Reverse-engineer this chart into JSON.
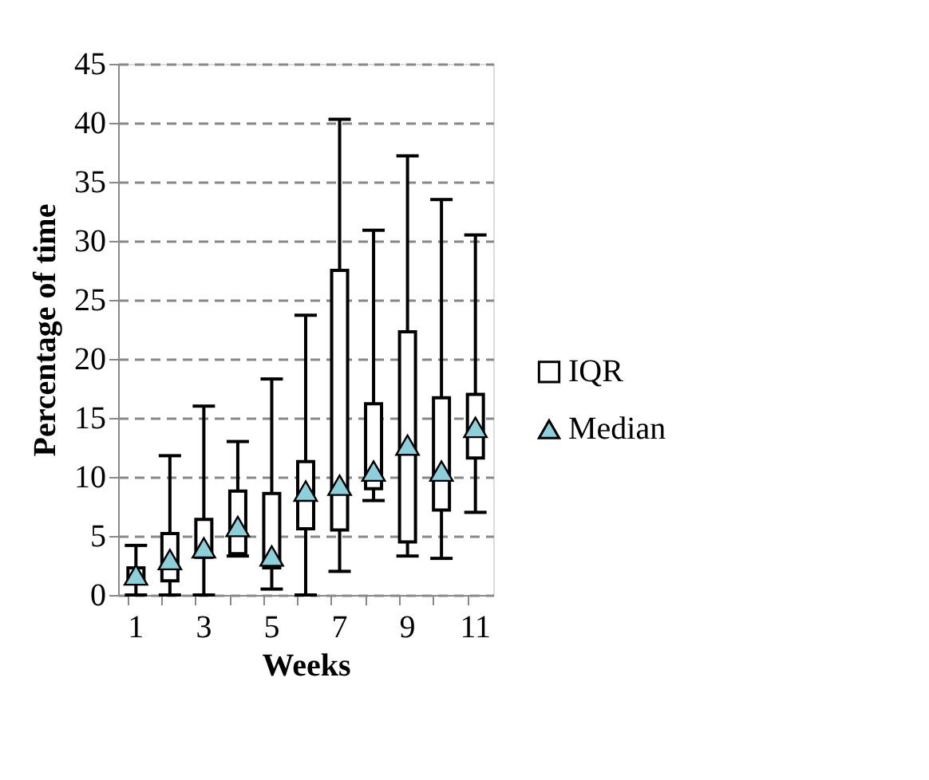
{
  "chart_data": {
    "type": "box",
    "xlabel": "Weeks",
    "ylabel": "Percentage of time",
    "categories": [
      "1",
      null,
      "3",
      null,
      "5",
      null,
      "7",
      null,
      "9",
      null,
      "11"
    ],
    "ylim": [
      0,
      45
    ],
    "yticks": [
      0,
      5,
      10,
      15,
      20,
      25,
      30,
      35,
      40,
      45
    ],
    "grid": "y",
    "legend": "right",
    "series": [
      {
        "name": "IQR",
        "color": "#ffffff",
        "boxes": [
          {
            "low": 0,
            "q1": 1,
            "q3": 2.3,
            "high": 4.2
          },
          {
            "low": 0,
            "q1": 1.2,
            "q3": 5.2,
            "high": 11.8
          },
          {
            "low": 0,
            "q1": 3.2,
            "q3": 6.4,
            "high": 16
          },
          {
            "low": 3.3,
            "q1": 3.5,
            "q3": 8.8,
            "high": 13
          },
          {
            "low": 0.5,
            "q1": 2.3,
            "q3": 8.6,
            "high": 18.3
          },
          {
            "low": 0,
            "q1": 5.6,
            "q3": 11.3,
            "high": 23.7
          },
          {
            "low": 2,
            "q1": 5.5,
            "q3": 27.5,
            "high": 40.3
          },
          {
            "low": 8,
            "q1": 9,
            "q3": 16.2,
            "high": 30.9
          },
          {
            "low": 3.3,
            "q1": 4.5,
            "q3": 22.3,
            "high": 37.2
          },
          {
            "low": 3.1,
            "q1": 7.2,
            "q3": 16.7,
            "high": 33.5
          },
          {
            "low": 7,
            "q1": 11.6,
            "q3": 17,
            "high": 30.5
          }
        ]
      },
      {
        "name": "Median",
        "type": "scatter",
        "color": "#8ecfdc",
        "marker": "triangle",
        "values": [
          1.7,
          3,
          4,
          5.8,
          3.3,
          8.8,
          9.3,
          10.5,
          12.7,
          10.5,
          14.2
        ]
      }
    ]
  }
}
